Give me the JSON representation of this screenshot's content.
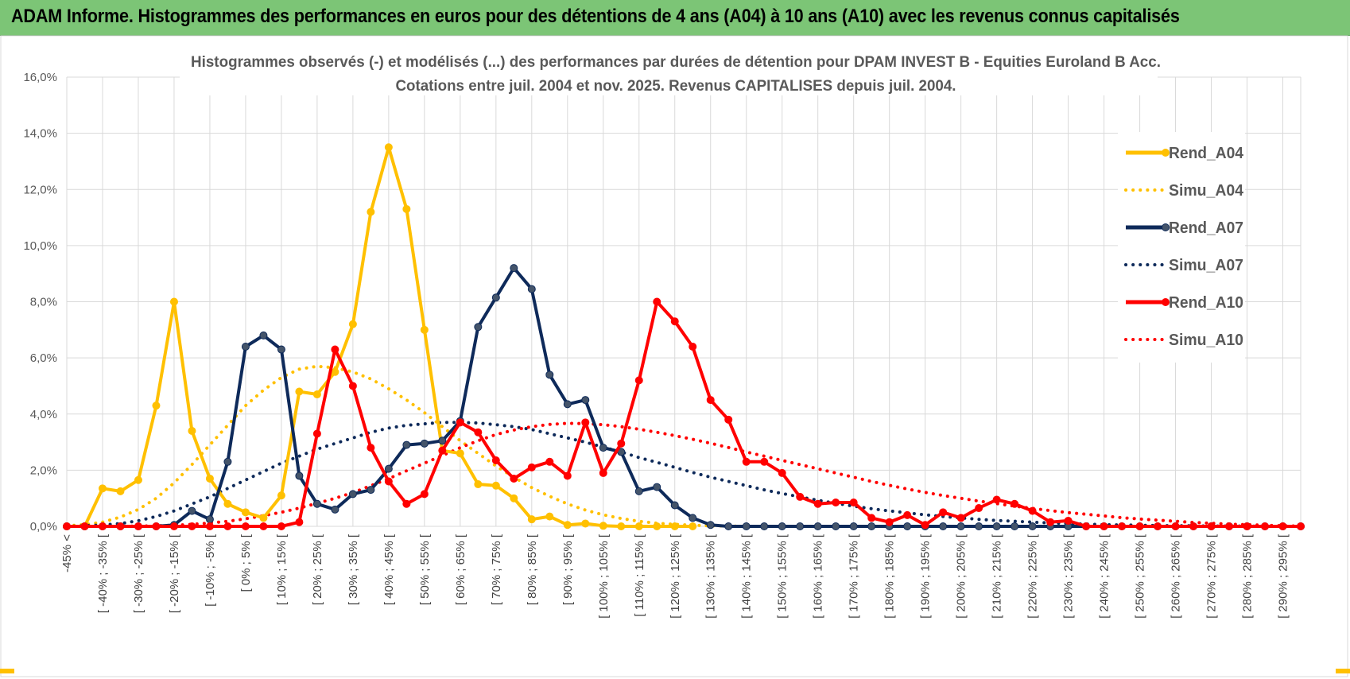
{
  "banner": {
    "title": "ADAM Informe. Histogrammes des performances en euros pour des détentions de 4 ans (A04) à 10 ans (A10) avec les revenus connus capitalisés"
  },
  "chart_data": {
    "type": "line",
    "title": "Histogrammes observés (-) et modélisés (...) des performances par durées de détention pour DPAM INVEST B - Equities Euroland B Acc.",
    "subtitle": "Cotations entre juil. 2004 et nov. 2025. Revenus CAPITALISES depuis juil. 2004.",
    "xlabel": "",
    "ylabel": "",
    "ylim": [
      0,
      16
    ],
    "yticks": [
      "0,0%",
      "2,0%",
      "4,0%",
      "6,0%",
      "8,0%",
      "10,0%",
      "12,0%",
      "14,0%",
      "16,0%"
    ],
    "grid": true,
    "legend_position": "right",
    "categories": [
      "-45% <",
      "[ -40% ; -35% [",
      "[ -30% ; -25% [",
      "[ -20% ; -15% [",
      "[ -10% ; -5% [",
      "[ 0% ; 5% [",
      "[ 10% ; 15% [",
      "[ 20% ; 25% [",
      "[ 30% ; 35% [",
      "[ 40% ; 45% [",
      "[ 50% ; 55% [",
      "[ 60% ; 65% [",
      "[ 70% ; 75% [",
      "[ 80% ; 85% [",
      "[ 90% ; 95% [",
      "[ 100% ; 105% [",
      "[ 110% ; 115% [",
      "[ 120% ; 125% [",
      "[ 130% ; 135% [",
      "[ 140% ; 145% [",
      "[ 150% ; 155% [",
      "[ 160% ; 165% [",
      "[ 170% ; 175% [",
      "[ 180% ; 185% [",
      "[ 190% ; 195% [",
      "[ 200% ; 205% [",
      "[ 210% ; 215% [",
      "[ 220% ; 225% [",
      "[ 230% ; 235% [",
      "[ 240% ; 245% [",
      "[ 250% ; 255% [",
      "[ 260% ; 265% [",
      "[ 270% ; 275% [",
      "[ 280% ; 285% [",
      "[ 290% ; 295% ["
    ],
    "x_start": -45,
    "x_step": 5,
    "series": [
      {
        "name": "Rend_A04",
        "style": "solid",
        "color": "#ffc000",
        "markers": true,
        "x": [
          -45,
          -40,
          -35,
          -30,
          -25,
          -20,
          -15,
          -10,
          -5,
          0,
          5,
          10,
          15,
          20,
          25,
          30,
          35,
          40,
          45,
          50,
          55,
          60,
          65,
          70,
          75,
          80,
          85,
          90,
          95,
          100,
          105,
          110,
          115,
          120,
          125,
          130
        ],
        "values": [
          0,
          0,
          1.35,
          1.25,
          1.65,
          4.3,
          8.0,
          3.4,
          1.7,
          0.8,
          0.5,
          0.3,
          1.1,
          4.8,
          4.7,
          5.5,
          7.2,
          11.2,
          13.5,
          11.3,
          7.0,
          2.7,
          2.6,
          1.5,
          1.45,
          1.0,
          0.25,
          0.35,
          0.05,
          0.1,
          0.02,
          0,
          0,
          0,
          0,
          0
        ]
      },
      {
        "name": "Simu_A04",
        "style": "dotted",
        "color": "#ffc000",
        "markers": false,
        "x": [
          -45,
          -40,
          -35,
          -30,
          -25,
          -20,
          -15,
          -10,
          -5,
          0,
          5,
          10,
          15,
          20,
          25,
          30,
          35,
          40,
          45,
          50,
          55,
          60,
          65,
          70,
          75,
          80,
          85,
          90,
          95,
          100,
          105,
          110,
          115,
          120,
          125,
          130,
          135,
          140,
          145,
          150,
          155,
          160,
          165,
          170,
          175,
          180
        ],
        "values": [
          0.02,
          0.06,
          0.15,
          0.33,
          0.6,
          1.0,
          1.55,
          2.2,
          2.9,
          3.6,
          4.3,
          4.85,
          5.3,
          5.6,
          5.7,
          5.65,
          5.5,
          5.25,
          4.9,
          4.5,
          4.05,
          3.55,
          3.05,
          2.6,
          2.15,
          1.75,
          1.38,
          1.07,
          0.8,
          0.58,
          0.41,
          0.28,
          0.18,
          0.11,
          0.07,
          0.04,
          0.02,
          0.01,
          0,
          0,
          0,
          0,
          0,
          0,
          0,
          0
        ]
      },
      {
        "name": "Rend_A07",
        "style": "solid",
        "color": "#0e2a5a",
        "markers": true,
        "x": [
          -45,
          -40,
          -35,
          -30,
          -25,
          -20,
          -15,
          -10,
          -5,
          0,
          5,
          10,
          15,
          20,
          25,
          30,
          35,
          40,
          45,
          50,
          55,
          60,
          65,
          70,
          75,
          80,
          85,
          90,
          95,
          100,
          105,
          110,
          115,
          120,
          125,
          130,
          135,
          140,
          145,
          150,
          155,
          160,
          165,
          170,
          175,
          180,
          185,
          190,
          195,
          200,
          205,
          210,
          215,
          220,
          225,
          230,
          235,
          240,
          245,
          250,
          255,
          260,
          265,
          270,
          275,
          280,
          285,
          290,
          295,
          300
        ],
        "values": [
          0,
          0,
          0,
          0,
          0,
          0,
          0.05,
          0.55,
          0.25,
          2.3,
          6.4,
          6.8,
          6.3,
          1.8,
          0.8,
          0.6,
          1.15,
          1.3,
          2.05,
          2.9,
          2.95,
          3.05,
          3.75,
          7.1,
          8.15,
          9.2,
          8.45,
          5.4,
          4.35,
          4.5,
          2.8,
          2.65,
          1.25,
          1.4,
          0.75,
          0.3,
          0.05,
          0,
          0,
          0,
          0,
          0,
          0,
          0,
          0,
          0,
          0,
          0,
          0,
          0,
          0,
          0,
          0,
          0,
          0,
          0,
          0,
          0,
          0,
          0,
          0,
          0,
          0,
          0,
          0,
          0,
          0,
          0,
          0,
          0
        ]
      },
      {
        "name": "Simu_A07",
        "style": "dotted",
        "color": "#0e2a5a",
        "markers": false,
        "x": [
          -45,
          -40,
          -35,
          -30,
          -25,
          -20,
          -15,
          -10,
          -5,
          0,
          5,
          10,
          15,
          20,
          25,
          30,
          35,
          40,
          45,
          50,
          55,
          60,
          65,
          70,
          75,
          80,
          85,
          90,
          95,
          100,
          105,
          110,
          115,
          120,
          125,
          130,
          135,
          140,
          145,
          150,
          155,
          160,
          165,
          170,
          175,
          180,
          185,
          190,
          195,
          200,
          205,
          210,
          215,
          220,
          225,
          230,
          235,
          240,
          245,
          250,
          255,
          260,
          265,
          270,
          275,
          280,
          285,
          290,
          295,
          300
        ],
        "values": [
          0,
          0.02,
          0.05,
          0.1,
          0.2,
          0.35,
          0.55,
          0.8,
          1.05,
          1.35,
          1.65,
          1.95,
          2.25,
          2.5,
          2.75,
          2.95,
          3.15,
          3.35,
          3.5,
          3.6,
          3.65,
          3.7,
          3.7,
          3.68,
          3.62,
          3.55,
          3.45,
          3.3,
          3.15,
          3.0,
          2.82,
          2.65,
          2.45,
          2.28,
          2.1,
          1.92,
          1.75,
          1.6,
          1.45,
          1.3,
          1.17,
          1.05,
          0.93,
          0.82,
          0.72,
          0.63,
          0.55,
          0.48,
          0.41,
          0.35,
          0.3,
          0.25,
          0.21,
          0.18,
          0.15,
          0.12,
          0.1,
          0.08,
          0.06,
          0.05,
          0.04,
          0.03,
          0.02,
          0.02,
          0.01,
          0.01,
          0.01,
          0,
          0,
          0
        ]
      },
      {
        "name": "Rend_A10",
        "style": "solid",
        "color": "#ff0000",
        "markers": true,
        "x": [
          -45,
          -40,
          -35,
          -30,
          -25,
          -20,
          -15,
          -10,
          -5,
          0,
          5,
          10,
          15,
          20,
          25,
          30,
          35,
          40,
          45,
          50,
          55,
          60,
          65,
          70,
          75,
          80,
          85,
          90,
          95,
          100,
          105,
          110,
          115,
          120,
          125,
          130,
          135,
          140,
          145,
          150,
          155,
          160,
          165,
          170,
          175,
          180,
          185,
          190,
          195,
          200,
          205,
          210,
          215,
          220,
          225,
          230,
          235,
          240,
          245,
          250,
          255,
          260,
          265,
          270,
          275,
          280,
          285,
          290,
          295,
          300
        ],
        "values": [
          0,
          0,
          0,
          0,
          0,
          0,
          0,
          0,
          0,
          0,
          0,
          0,
          0,
          0.15,
          3.3,
          6.3,
          5.0,
          2.8,
          1.6,
          0.8,
          1.15,
          2.7,
          3.7,
          3.35,
          2.35,
          1.7,
          2.1,
          2.3,
          1.8,
          3.7,
          1.9,
          2.95,
          5.2,
          8.0,
          7.3,
          6.4,
          4.5,
          3.8,
          2.3,
          2.3,
          1.9,
          1.05,
          0.8,
          0.85,
          0.85,
          0.3,
          0.15,
          0.4,
          0.05,
          0.5,
          0.3,
          0.65,
          0.95,
          0.8,
          0.55,
          0.15,
          0.2,
          0,
          0,
          0,
          0,
          0,
          0,
          0,
          0,
          0,
          0,
          0,
          0,
          0
        ]
      },
      {
        "name": "Simu_A10",
        "style": "dotted",
        "color": "#ff0000",
        "markers": false,
        "x": [
          -45,
          -40,
          -35,
          -30,
          -25,
          -20,
          -15,
          -10,
          -5,
          0,
          5,
          10,
          15,
          20,
          25,
          30,
          35,
          40,
          45,
          50,
          55,
          60,
          65,
          70,
          75,
          80,
          85,
          90,
          95,
          100,
          105,
          110,
          115,
          120,
          125,
          130,
          135,
          140,
          145,
          150,
          155,
          160,
          165,
          170,
          175,
          180,
          185,
          190,
          195,
          200,
          205,
          210,
          215,
          220,
          225,
          230,
          235,
          240,
          245,
          250,
          255,
          260,
          265,
          270,
          275,
          280,
          285,
          290,
          295,
          300
        ],
        "values": [
          0,
          0,
          0,
          0,
          0.01,
          0.02,
          0.04,
          0.07,
          0.12,
          0.18,
          0.27,
          0.38,
          0.5,
          0.65,
          0.82,
          1.0,
          1.2,
          1.45,
          1.7,
          1.98,
          2.25,
          2.52,
          2.8,
          3.05,
          3.27,
          3.43,
          3.55,
          3.63,
          3.67,
          3.66,
          3.62,
          3.55,
          3.46,
          3.35,
          3.23,
          3.1,
          2.96,
          2.81,
          2.65,
          2.5,
          2.35,
          2.2,
          2.05,
          1.9,
          1.75,
          1.6,
          1.46,
          1.33,
          1.21,
          1.1,
          1.0,
          0.9,
          0.81,
          0.72,
          0.64,
          0.56,
          0.49,
          0.43,
          0.37,
          0.31,
          0.26,
          0.22,
          0.18,
          0.14,
          0.11,
          0.08,
          0.06,
          0.04,
          0.02,
          0.01
        ]
      }
    ]
  }
}
